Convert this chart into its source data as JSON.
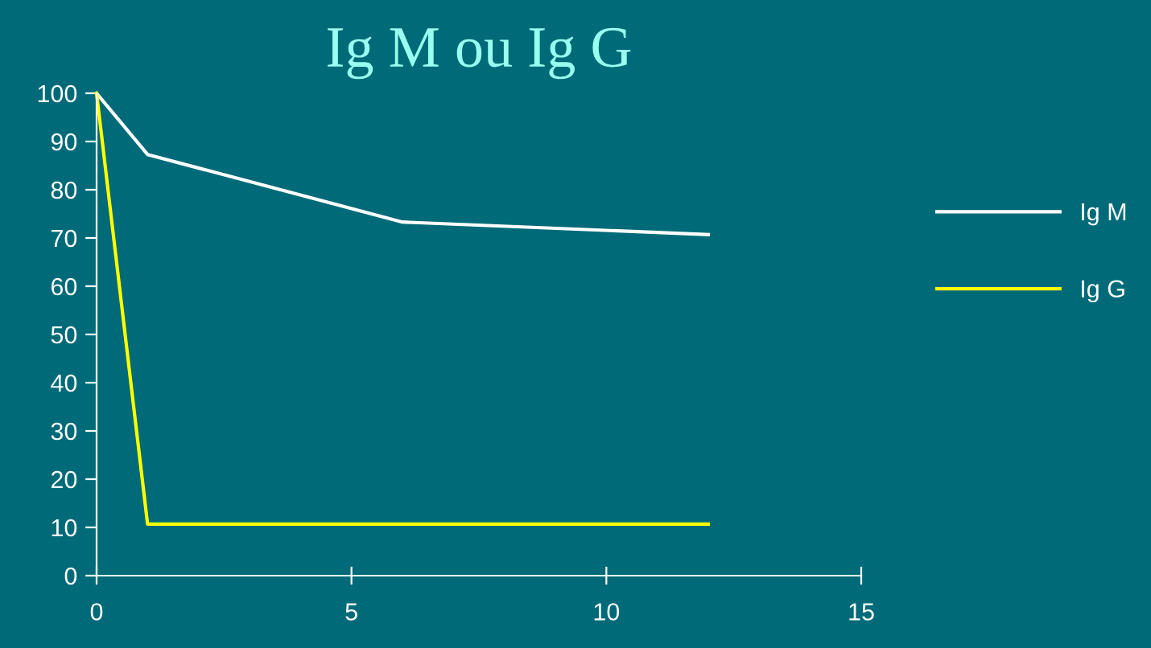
{
  "chart_data": {
    "type": "line",
    "title": "Ig M ou Ig G",
    "series": [
      {
        "name": "Ig M",
        "color": "#ffffff",
        "x": [
          0,
          1,
          6,
          12
        ],
        "values": [
          100,
          87.3,
          73.3,
          70.7
        ]
      },
      {
        "name": "Ig G",
        "color": "#ffff00",
        "x": [
          0,
          1,
          12
        ],
        "values": [
          100,
          10.7,
          10.7
        ]
      }
    ],
    "xlim": [
      0,
      15
    ],
    "xticks": [
      0,
      5,
      10,
      15
    ],
    "ylim": [
      0,
      100
    ],
    "yticks": [
      0,
      10,
      20,
      30,
      40,
      50,
      60,
      70,
      80,
      90,
      100
    ],
    "grid": false,
    "legend": "right",
    "marker": "none",
    "line_style": "solid"
  }
}
